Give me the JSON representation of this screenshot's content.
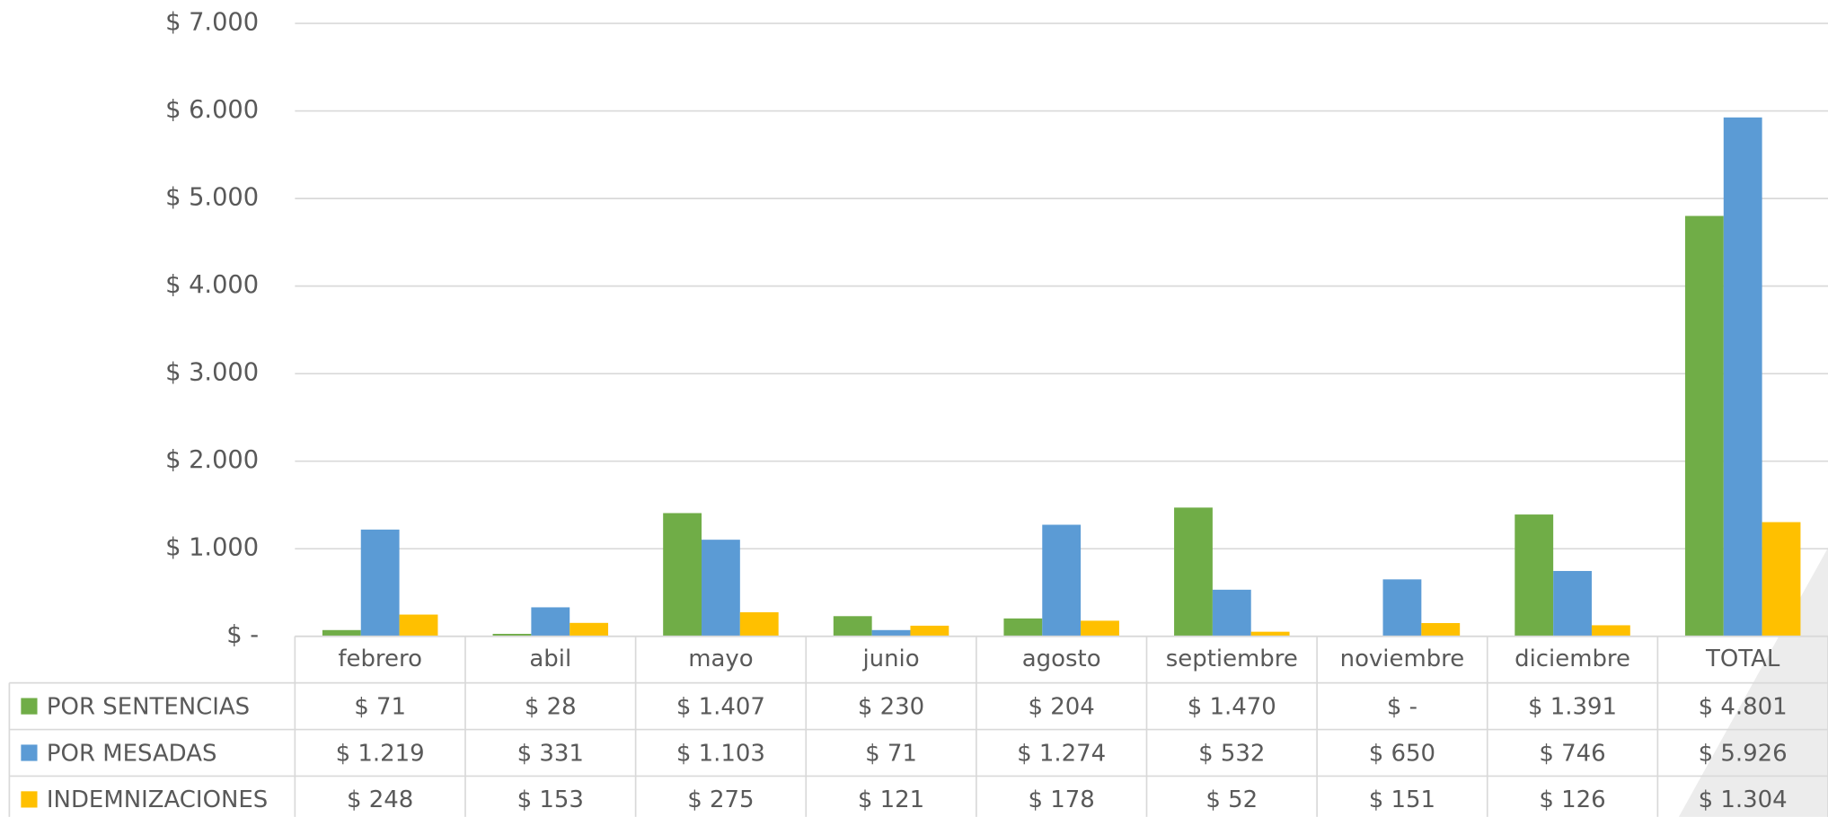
{
  "chart_data": {
    "type": "bar",
    "categories": [
      "febrero",
      "abil",
      "mayo",
      "junio",
      "agosto",
      "septiembre",
      "noviembre",
      "diciembre",
      "TOTAL"
    ],
    "series": [
      {
        "name": "POR SENTENCIAS",
        "color": "#70ad47",
        "values": [
          71,
          28,
          1407,
          230,
          204,
          1470,
          0,
          1391,
          4801
        ],
        "value_labels": [
          "$ 71",
          "$ 28",
          "$ 1.407",
          "$ 230",
          "$ 204",
          "$ 1.470",
          "$ -",
          "$ 1.391",
          "$ 4.801"
        ]
      },
      {
        "name": "POR MESADAS",
        "color": "#5b9bd5",
        "values": [
          1219,
          331,
          1103,
          71,
          1274,
          532,
          650,
          746,
          5926
        ],
        "value_labels": [
          "$ 1.219",
          "$ 331",
          "$ 1.103",
          "$ 71",
          "$ 1.274",
          "$ 532",
          "$ 650",
          "$ 746",
          "$ 5.926"
        ]
      },
      {
        "name": "INDEMNIZACIONES",
        "color": "#ffc000",
        "values": [
          248,
          153,
          275,
          121,
          178,
          52,
          151,
          126,
          1304
        ],
        "value_labels": [
          "$ 248",
          "$ 153",
          "$ 275",
          "$ 121",
          "$ 178",
          "$ 52",
          "$ 151",
          "$ 126",
          "$ 1.304"
        ]
      }
    ],
    "ylim": [
      0,
      7000
    ],
    "yticks": [
      {
        "value": 0,
        "label": "$ -"
      },
      {
        "value": 1000,
        "label": "$ 1.000"
      },
      {
        "value": 2000,
        "label": "$ 2.000"
      },
      {
        "value": 3000,
        "label": "$ 3.000"
      },
      {
        "value": 4000,
        "label": "$ 4.000"
      },
      {
        "value": 5000,
        "label": "$ 5.000"
      },
      {
        "value": 6000,
        "label": "$ 6.000"
      },
      {
        "value": 7000,
        "label": "$ 7.000"
      }
    ],
    "grid": true
  }
}
